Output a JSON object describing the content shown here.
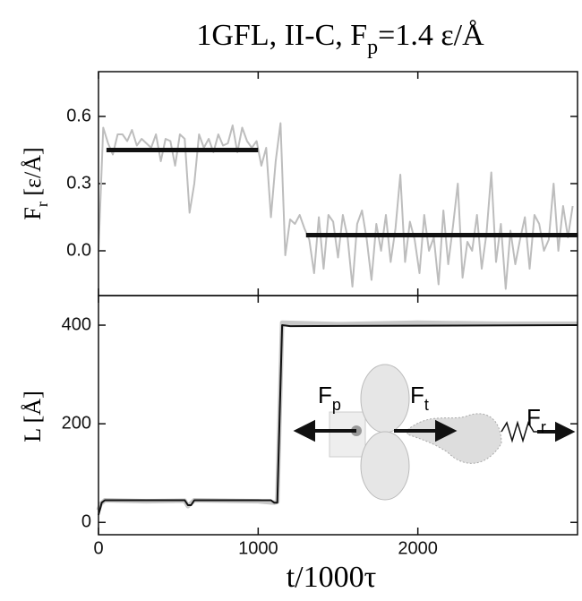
{
  "chart_data": [
    {
      "type": "line",
      "title": {
        "main": "1GFL, II-C, F",
        "sub": "p",
        "rest": "=1.4 ε/Å"
      },
      "ylabel": {
        "main": "F",
        "sub": "r",
        "rest": " [ε/Å]"
      },
      "xlim": [
        0,
        3000
      ],
      "xticks": [
        0,
        1000,
        2000
      ],
      "ylim": [
        -0.2,
        0.8
      ],
      "yticks": [
        {
          "value": 0,
          "label": "0.0"
        },
        0.3,
        0.6
      ],
      "series": [
        {
          "color": "#bdbdbd",
          "x": [
            0,
            30,
            60,
            90,
            120,
            150,
            180,
            210,
            240,
            270,
            300,
            330,
            360,
            390,
            420,
            450,
            480,
            510,
            540,
            570,
            600,
            630,
            660,
            690,
            720,
            750,
            780,
            810,
            840,
            870,
            900,
            930,
            960,
            990,
            1020,
            1050,
            1080,
            1110,
            1140,
            1170,
            1200,
            1230,
            1260,
            1290,
            1320,
            1350,
            1380,
            1410,
            1440,
            1470,
            1500,
            1530,
            1560,
            1590,
            1620,
            1650,
            1680,
            1710,
            1740,
            1770,
            1800,
            1830,
            1860,
            1890,
            1920,
            1950,
            1980,
            2010,
            2040,
            2070,
            2100,
            2130,
            2160,
            2190,
            2220,
            2250,
            2280,
            2310,
            2340,
            2370,
            2400,
            2430,
            2460,
            2490,
            2520,
            2550,
            2580,
            2610,
            2640,
            2670,
            2700,
            2730,
            2760,
            2790,
            2820,
            2850,
            2880,
            2910,
            2940,
            2970
          ],
          "values": [
            0.0,
            0.55,
            0.48,
            0.43,
            0.52,
            0.52,
            0.49,
            0.54,
            0.47,
            0.5,
            0.48,
            0.46,
            0.52,
            0.4,
            0.5,
            0.49,
            0.38,
            0.52,
            0.5,
            0.17,
            0.3,
            0.52,
            0.46,
            0.5,
            0.44,
            0.52,
            0.47,
            0.48,
            0.56,
            0.44,
            0.55,
            0.49,
            0.46,
            0.49,
            0.38,
            0.46,
            0.15,
            0.4,
            0.57,
            -0.02,
            0.14,
            0.12,
            0.16,
            0.1,
            0.05,
            -0.1,
            0.15,
            -0.08,
            0.16,
            0.13,
            -0.03,
            0.16,
            0.06,
            -0.16,
            0.12,
            0.18,
            0.05,
            -0.13,
            0.12,
            0.0,
            0.16,
            -0.05,
            0.1,
            0.34,
            -0.05,
            0.13,
            0.05,
            -0.1,
            0.16,
            0.0,
            0.06,
            -0.15,
            0.18,
            -0.06,
            0.11,
            0.3,
            -0.12,
            0.04,
            0.0,
            0.16,
            -0.08,
            0.08,
            0.35,
            -0.05,
            0.12,
            -0.17,
            0.09,
            -0.06,
            0.05,
            0.15,
            -0.08,
            0.16,
            0.12,
            0.0,
            0.05,
            0.3,
            0.0,
            0.2,
            0.06,
            0.2
          ],
          "width": 2
        },
        {
          "color": "#111111",
          "x": [
            50,
            1000
          ],
          "values": [
            0.45,
            0.45
          ],
          "width": 5
        },
        {
          "color": "#111111",
          "x": [
            1300,
            3000
          ],
          "values": [
            0.07,
            0.07
          ],
          "width": 5
        }
      ]
    },
    {
      "type": "line",
      "ylabel": {
        "main": "L [Å]"
      },
      "xlabel": "t/1000τ",
      "xlim": [
        0,
        3000
      ],
      "xticks": [
        0,
        1000,
        2000
      ],
      "ylim": [
        -25,
        460
      ],
      "yticks": [
        0,
        200,
        400
      ],
      "series": [
        {
          "color": "#c8c8c8",
          "x": [
            0,
            15,
            40,
            300,
            540,
            560,
            600,
            1000,
            1100,
            1120,
            1150,
            1500,
            2000,
            2500,
            3000
          ],
          "values": [
            25,
            38,
            45,
            43,
            44,
            33,
            45,
            43,
            40,
            42,
            405,
            402,
            405,
            403,
            403
          ],
          "width": 5
        },
        {
          "color": "#111111",
          "x": [
            0,
            20,
            40,
            540,
            560,
            580,
            600,
            1080,
            1100,
            1120,
            1150,
            1200,
            3000
          ],
          "values": [
            15,
            40,
            45,
            45,
            35,
            35,
            45,
            45,
            40,
            40,
            400,
            398,
            400
          ],
          "width": 2
        }
      ],
      "annotations": [
        {
          "main": "F",
          "sub": "p"
        },
        {
          "main": "F",
          "sub": "t"
        },
        {
          "main": "F",
          "sub": "r"
        }
      ]
    }
  ]
}
